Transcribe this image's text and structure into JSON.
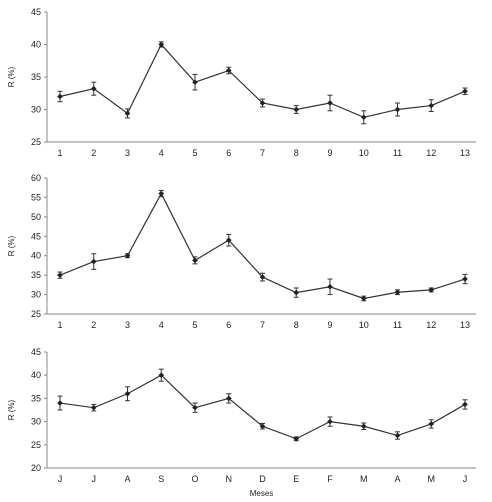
{
  "chart_data": [
    {
      "type": "line",
      "categories": [
        "1",
        "2",
        "3",
        "4",
        "5",
        "6",
        "7",
        "8",
        "9",
        "10",
        "11",
        "12",
        "13"
      ],
      "series": [
        {
          "values": [
            32.0,
            33.2,
            29.4,
            40.0,
            34.2,
            36.0,
            31.0,
            30.0,
            31.0,
            28.8,
            30.0,
            30.6,
            32.8
          ],
          "errors": [
            0.8,
            1.0,
            0.7,
            0.4,
            1.2,
            0.5,
            0.6,
            0.6,
            1.2,
            1.0,
            1.0,
            0.9,
            0.5
          ]
        }
      ],
      "ylabel": "R (%)",
      "xlabel": "",
      "ylim": [
        25,
        45
      ],
      "yticks": [
        "25",
        "30",
        "35",
        "40",
        "45"
      ]
    },
    {
      "type": "line",
      "categories": [
        "1",
        "2",
        "3",
        "4",
        "5",
        "6",
        "7",
        "8",
        "9",
        "10",
        "11",
        "12",
        "13"
      ],
      "series": [
        {
          "values": [
            35.0,
            38.5,
            40.0,
            56.0,
            38.8,
            44.0,
            34.5,
            30.5,
            32.0,
            29.0,
            30.6,
            31.2,
            34.0
          ],
          "errors": [
            0.8,
            2.0,
            0.5,
            0.8,
            0.9,
            1.5,
            1.0,
            1.2,
            2.0,
            0.6,
            0.6,
            0.5,
            1.2
          ]
        }
      ],
      "ylabel": "R (%)",
      "xlabel": "",
      "ylim": [
        25,
        60
      ],
      "yticks": [
        "25",
        "30",
        "35",
        "40",
        "45",
        "50",
        "55",
        "60"
      ]
    },
    {
      "type": "line",
      "categories": [
        "J",
        "J",
        "A",
        "S",
        "O",
        "N",
        "D",
        "E",
        "F",
        "M",
        "A",
        "M",
        "J"
      ],
      "series": [
        {
          "values": [
            34.0,
            33.0,
            36.0,
            40.0,
            33.0,
            35.0,
            29.0,
            26.3,
            30.0,
            29.0,
            27.0,
            29.5,
            33.7
          ],
          "errors": [
            1.5,
            0.7,
            1.5,
            1.3,
            1.0,
            1.0,
            0.6,
            0.4,
            1.0,
            0.7,
            0.8,
            0.9,
            1.0
          ]
        }
      ],
      "ylabel": "R (%)",
      "xlabel": "Meses",
      "ylim": [
        20,
        45
      ],
      "yticks": [
        "20",
        "25",
        "30",
        "35",
        "40",
        "45"
      ]
    }
  ]
}
